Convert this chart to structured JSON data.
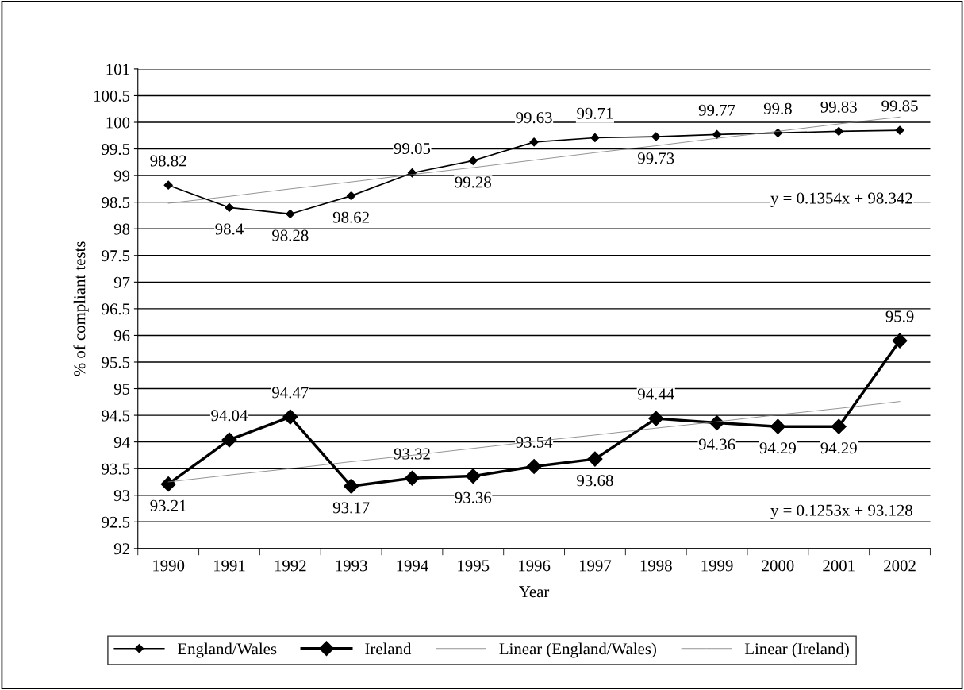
{
  "chart_data": {
    "type": "line",
    "xlabel": "Year",
    "ylabel": "% of compliant tests",
    "categories": [
      "1990",
      "1991",
      "1992",
      "1993",
      "1994",
      "1995",
      "1996",
      "1997",
      "1998",
      "1999",
      "2000",
      "2001",
      "2002"
    ],
    "series": [
      {
        "name": "England/Wales",
        "color": "#000000",
        "marker": "diamond",
        "data_labels": true,
        "values": [
          98.82,
          98.4,
          98.28,
          98.62,
          99.05,
          99.28,
          99.63,
          99.71,
          99.73,
          99.77,
          99.8,
          99.83,
          99.85
        ]
      },
      {
        "name": "Ireland",
        "color": "#000000",
        "marker": "diamond",
        "data_labels": true,
        "values": [
          93.21,
          94.04,
          94.47,
          93.17,
          93.32,
          93.36,
          93.54,
          93.68,
          94.44,
          94.36,
          94.29,
          94.29,
          95.9
        ]
      },
      {
        "name": "Linear (England/Wales)",
        "color": "#808080",
        "marker": "none",
        "values": [
          98.48,
          98.61,
          98.75,
          98.88,
          99.02,
          99.15,
          99.29,
          99.43,
          99.56,
          99.7,
          99.83,
          99.97,
          100.1
        ]
      },
      {
        "name": "Linear (Ireland)",
        "color": "#808080",
        "marker": "none",
        "values": [
          93.25,
          93.38,
          93.5,
          93.63,
          93.75,
          93.88,
          94.01,
          94.13,
          94.26,
          94.38,
          94.51,
          94.63,
          94.76
        ]
      }
    ],
    "ylim": [
      92,
      101
    ],
    "yticks": [
      92,
      92.5,
      93,
      93.5,
      94,
      94.5,
      95,
      95.5,
      96,
      96.5,
      97,
      97.5,
      98,
      98.5,
      99,
      99.5,
      100,
      100.5,
      101
    ],
    "grid": "y",
    "legend": "bottom",
    "annotations": [
      "y = 0.1354x + 98.342",
      "y = 0.1253x + 93.128"
    ]
  }
}
